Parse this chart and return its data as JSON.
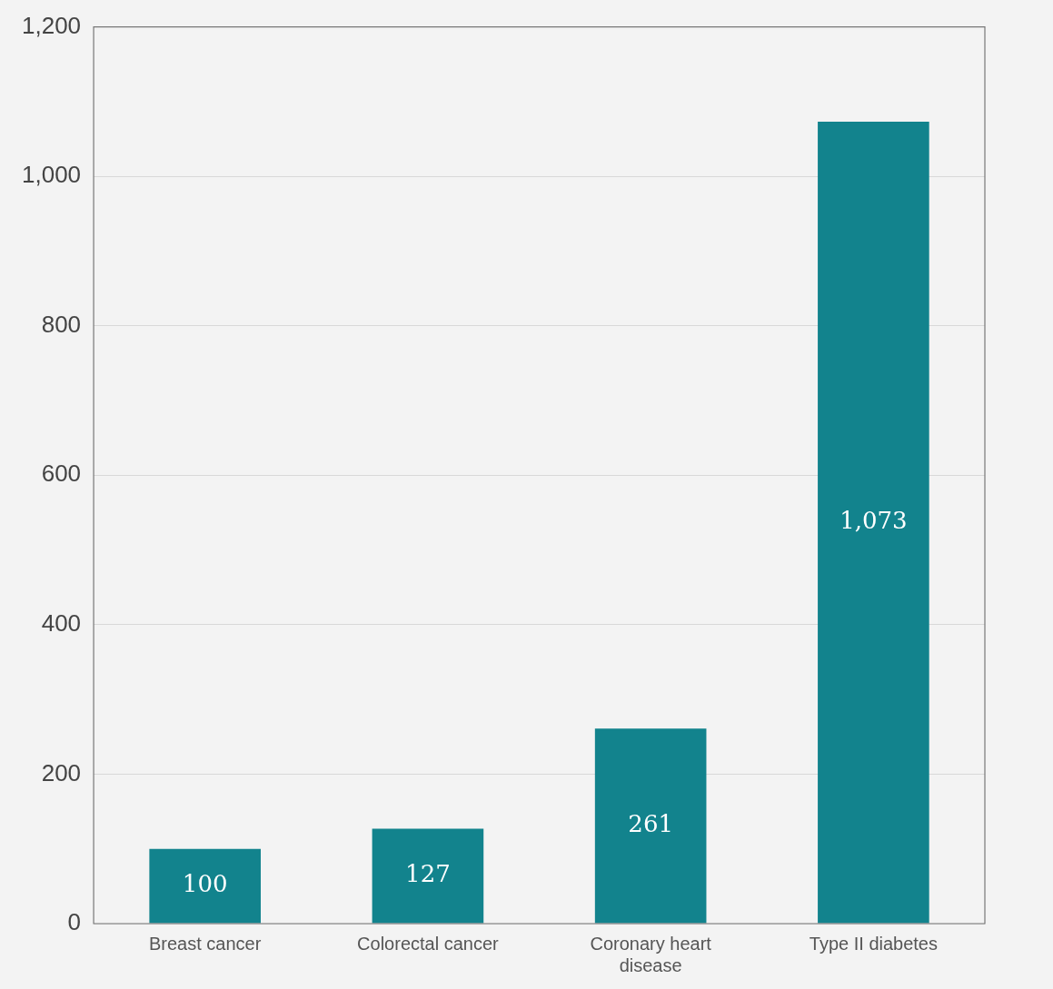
{
  "chart_data": {
    "type": "bar",
    "categories": [
      "Breast cancer",
      "Colorectal cancer",
      "Coronary heart disease",
      "Type II diabetes"
    ],
    "values": [
      100,
      127,
      261,
      1073
    ],
    "value_labels": [
      "100",
      "127",
      "261",
      "1,073"
    ],
    "color": "#12838d",
    "ylim": [
      0,
      1200
    ],
    "yticks": [
      0,
      200,
      400,
      600,
      800,
      {
        "value": 1000,
        "label": "1,000"
      },
      {
        "value": 1200,
        "label": "1,200"
      }
    ],
    "grid": "y"
  }
}
